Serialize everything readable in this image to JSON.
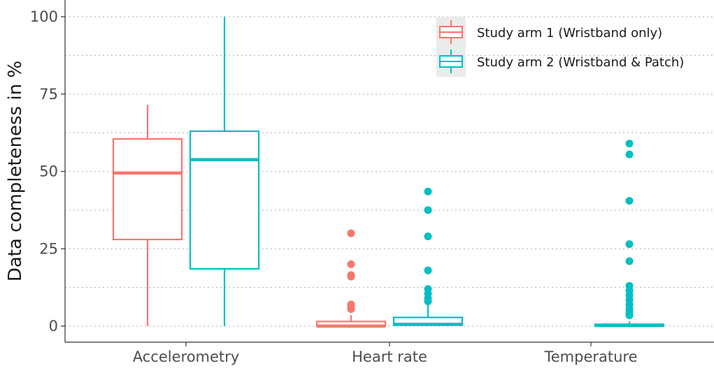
{
  "chart_data": {
    "type": "boxplot",
    "title": "",
    "xlabel": "",
    "ylabel": "Data completeness in %",
    "ylim": [
      -5,
      104
    ],
    "yticks": [
      0,
      25,
      50,
      75,
      100
    ],
    "grid": true,
    "legend_position": "top-right",
    "categories": [
      "Accelerometry",
      "Heart rate",
      "Temperature"
    ],
    "series": [
      {
        "name": "Study arm 1 (Wristband only)",
        "color": "#F8766D",
        "boxes": [
          {
            "category": "Accelerometry",
            "min": 0,
            "q1": 28,
            "median": 49.5,
            "q3": 60.5,
            "max": 71.5,
            "outliers": []
          },
          {
            "category": "Heart rate",
            "min": 0,
            "q1": 0,
            "median": 0,
            "q3": 1.5,
            "max": 3.5,
            "outliers": [
              5.5,
              6.5,
              7,
              16,
              16.5,
              20,
              30
            ]
          },
          null
        ]
      },
      {
        "name": "Study arm 2 (Wristband & Patch)",
        "color": "#00BFC4",
        "boxes": [
          {
            "category": "Accelerometry",
            "min": 0,
            "q1": 18.5,
            "median": 53.8,
            "q3": 63,
            "max": 100,
            "outliers": []
          },
          {
            "category": "Heart rate",
            "min": 0,
            "q1": 0.3,
            "median": 0.6,
            "q3": 2.8,
            "max": 7,
            "outliers": [
              8,
              9,
              10.5,
              12,
              18,
              29,
              37.5,
              43.5
            ]
          },
          {
            "category": "Temperature",
            "min": 0,
            "q1": 0,
            "median": 0.2,
            "q3": 0.6,
            "max": 1.5,
            "outliers": [
              3.5,
              4.5,
              5.5,
              7,
              8.5,
              10,
              11.5,
              13,
              21,
              26.5,
              40.5,
              55.5,
              59
            ]
          }
        ]
      }
    ]
  }
}
